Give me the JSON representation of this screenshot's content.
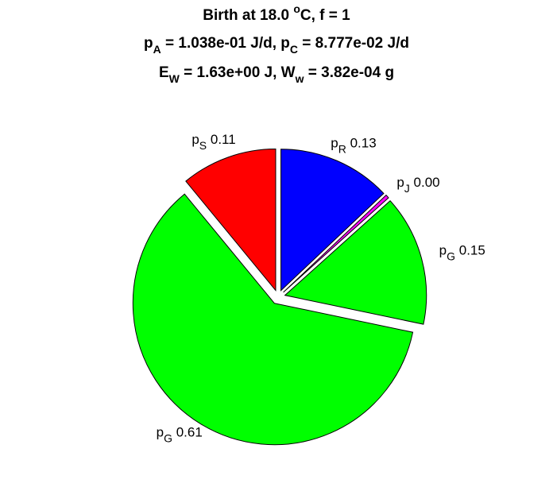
{
  "chart_data": {
    "type": "pie",
    "title": [
      [
        {
          "text": "Birth at 18.0 "
        },
        {
          "text": "o",
          "style": "sup"
        },
        {
          "text": "C, f = 1"
        }
      ],
      [
        {
          "text": "p"
        },
        {
          "text": "A",
          "style": "sub"
        },
        {
          "text": " = 1.038e-01 J/d, p"
        },
        {
          "text": "C",
          "style": "sub"
        },
        {
          "text": " = 8.777e-02 J/d"
        }
      ],
      [
        {
          "text": "E"
        },
        {
          "text": "W",
          "style": "sub"
        },
        {
          "text": " = 1.63e+00 J, W"
        },
        {
          "text": "w",
          "style": "sub"
        },
        {
          "text": " = 3.82e-04 g"
        }
      ]
    ],
    "categories": [
      {
        "text": "p",
        "sub": "R"
      },
      {
        "text": "p",
        "sub": "J"
      },
      {
        "text": "p",
        "sub": "G"
      },
      {
        "text": "p",
        "sub": "G"
      },
      {
        "text": "p",
        "sub": "S"
      }
    ],
    "values": [
      0.13,
      0.004,
      0.15,
      0.61,
      0.11
    ],
    "value_labels": [
      "0.13",
      "0.00",
      "0.15",
      "0.61",
      "0.11"
    ],
    "colors": [
      "#0000ff",
      "#ff00ff",
      "#00ff00",
      "#00ff00",
      "#ff0000"
    ],
    "explode": true
  }
}
